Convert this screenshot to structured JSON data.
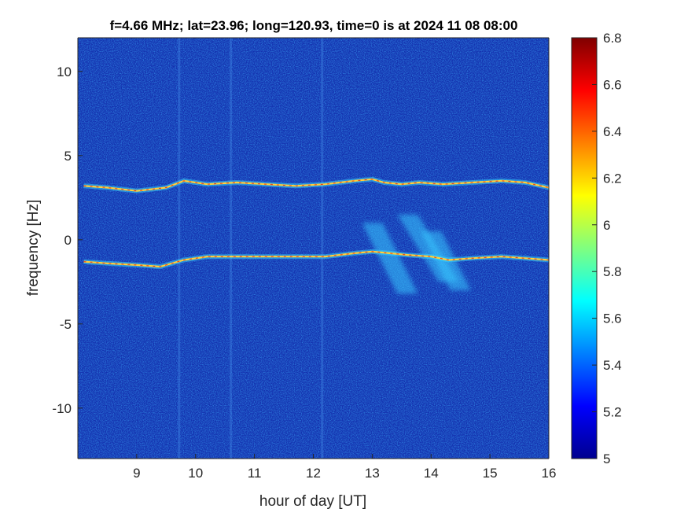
{
  "chart_data": {
    "type": "heatmap",
    "title": "f=4.66 MHz;  lat=23.96; long=120.93, time=0 is at 2024 11 08 08:00",
    "xlabel": "hour of day [UT]",
    "ylabel": "frequency [Hz]",
    "xlim": [
      8.0,
      16.0
    ],
    "ylim": [
      -13.0,
      12.0
    ],
    "x_ticks": [
      9,
      10,
      11,
      12,
      13,
      14,
      15,
      16
    ],
    "y_ticks": [
      10,
      5,
      0,
      -5,
      -10
    ],
    "colorbar": {
      "colormap": "jet",
      "clim": [
        5.0,
        6.8
      ],
      "ticks": [
        6.8,
        6.6,
        6.4,
        6.2,
        6.0,
        5.8,
        5.6,
        5.4,
        5.2,
        5.0
      ],
      "tick_labels": [
        "6.8",
        "6.6",
        "6.4",
        "6.2",
        "6",
        "5.8",
        "5.6",
        "5.4",
        "5.2",
        "5"
      ]
    },
    "traces": [
      {
        "points": [
          [
            8.1,
            3.2
          ],
          [
            8.5,
            3.1
          ],
          [
            9.0,
            2.9
          ],
          [
            9.5,
            3.1
          ],
          [
            9.8,
            3.5
          ],
          [
            10.2,
            3.3
          ],
          [
            10.7,
            3.4
          ],
          [
            11.2,
            3.3
          ],
          [
            11.7,
            3.2
          ],
          [
            12.2,
            3.3
          ],
          [
            12.7,
            3.5
          ],
          [
            13.0,
            3.6
          ],
          [
            13.2,
            3.4
          ],
          [
            13.5,
            3.3
          ],
          [
            13.8,
            3.4
          ],
          [
            14.2,
            3.3
          ],
          [
            14.7,
            3.4
          ],
          [
            15.2,
            3.5
          ],
          [
            15.6,
            3.4
          ],
          [
            16.0,
            3.1
          ]
        ],
        "gaps": [
          [
            13.25,
            13.5
          ],
          [
            13.8,
            14.2
          ]
        ]
      },
      {
        "points": [
          [
            8.1,
            -1.3
          ],
          [
            8.5,
            -1.4
          ],
          [
            9.0,
            -1.5
          ],
          [
            9.4,
            -1.6
          ],
          [
            9.8,
            -1.2
          ],
          [
            10.2,
            -1.0
          ],
          [
            10.7,
            -1.0
          ],
          [
            11.2,
            -1.0
          ],
          [
            11.7,
            -1.0
          ],
          [
            12.2,
            -1.0
          ],
          [
            12.7,
            -0.8
          ],
          [
            13.0,
            -0.7
          ],
          [
            13.3,
            -0.8
          ],
          [
            13.6,
            -0.9
          ],
          [
            14.0,
            -1.0
          ],
          [
            14.3,
            -1.2
          ],
          [
            14.7,
            -1.1
          ],
          [
            15.2,
            -1.0
          ],
          [
            15.6,
            -1.1
          ],
          [
            16.0,
            -1.2
          ]
        ],
        "gaps": []
      }
    ],
    "diffuse_features": [
      {
        "x0": 13.0,
        "y0": 1.0,
        "x1": 13.6,
        "y1": -3.2
      },
      {
        "x0": 13.6,
        "y0": 1.5,
        "x1": 14.3,
        "y1": -2.5
      },
      {
        "x0": 14.0,
        "y0": 0.5,
        "x1": 14.5,
        "y1": -3.0
      }
    ],
    "vertical_stripes": [
      9.72,
      10.6,
      12.15
    ],
    "colors": {
      "background_field": "#1433b0",
      "axis": "#262626"
    }
  }
}
